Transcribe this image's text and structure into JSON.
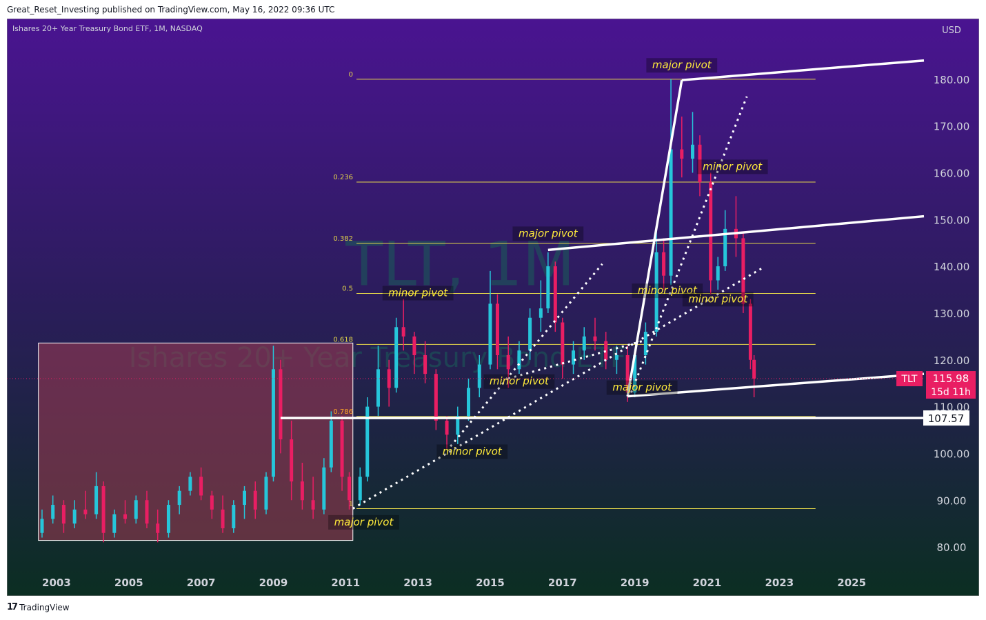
{
  "header": {
    "text": "Great_Reset_Investing published on TradingView.com, May 16, 2022 09:36 UTC"
  },
  "footer": {
    "logo": "17",
    "brand": "TradingView"
  },
  "chart_data": {
    "type": "candlestick",
    "title": "Ishares 20+ Year Treasury Bond ETF, 1M, NASDAQ",
    "watermark": {
      "line1": "TLT, 1M",
      "line2": "Ishares 20+ Year Treasury Bond ETF"
    },
    "currency": "USD",
    "colors": {
      "up": "#26c6da",
      "down": "#e91e63",
      "bgTop": "#4a1491",
      "bgBottom": "#0b2e22",
      "fib": "#e6d84a",
      "label": "#ffeb3b"
    },
    "x_ticks": [
      "2003",
      "2005",
      "2007",
      "2009",
      "2011",
      "2013",
      "2015",
      "2017",
      "2019",
      "2021",
      "2023",
      "2025"
    ],
    "y_ticks": [
      80,
      90,
      100,
      110,
      120,
      130,
      140,
      150,
      160,
      170,
      180
    ],
    "ylim": [
      75,
      190
    ],
    "xlim": [
      2002.2,
      2027.0
    ],
    "last_price": {
      "symbol": "TLT",
      "value": "115.98",
      "countdown": "15d 11h",
      "raw": 115.98
    },
    "support": {
      "value": "107.57",
      "raw": 107.57
    },
    "fib_levels": [
      {
        "label": "0",
        "value": 180.0
      },
      {
        "label": "0.236",
        "value": 158.0
      },
      {
        "label": "0.382",
        "value": 144.9
      },
      {
        "label": "0.5",
        "value": 134.2
      },
      {
        "label": "0.618",
        "value": 123.3
      },
      {
        "label": "0.786",
        "value": 107.9
      },
      {
        "label": "1",
        "value": 88.2
      }
    ],
    "pivots": [
      {
        "text": "major pivot",
        "x": 2020.3,
        "y": 182.3
      },
      {
        "text": "minor pivot",
        "x": 2021.7,
        "y": 160.6
      },
      {
        "text": "major pivot",
        "x": 2016.6,
        "y": 146.3
      },
      {
        "text": "minor pivot",
        "x": 2013.0,
        "y": 133.6
      },
      {
        "text": "minor pivot",
        "x": 2019.9,
        "y": 134.1
      },
      {
        "text": "minor pivot",
        "x": 2021.3,
        "y": 132.3
      },
      {
        "text": "minor pivot",
        "x": 2015.8,
        "y": 114.7
      },
      {
        "text": "major pivot",
        "x": 2019.2,
        "y": 113.4
      },
      {
        "text": "minor pivot",
        "x": 2014.5,
        "y": 99.7
      },
      {
        "text": "major pivot",
        "x": 2011.5,
        "y": 84.6
      }
    ],
    "box": {
      "x0": 2002.5,
      "x1": 2011.2,
      "y0": 81.4,
      "y1": 123.6
    },
    "series": [
      {
        "t": 2002.6,
        "o": 83,
        "h": 88,
        "l": 82,
        "c": 86
      },
      {
        "t": 2002.9,
        "o": 86,
        "h": 91,
        "l": 85,
        "c": 89
      },
      {
        "t": 2003.2,
        "o": 89,
        "h": 90,
        "l": 83,
        "c": 85
      },
      {
        "t": 2003.5,
        "o": 85,
        "h": 90,
        "l": 84,
        "c": 88
      },
      {
        "t": 2003.8,
        "o": 88,
        "h": 92,
        "l": 86,
        "c": 87
      },
      {
        "t": 2004.1,
        "o": 87,
        "h": 96,
        "l": 86,
        "c": 93
      },
      {
        "t": 2004.3,
        "o": 93,
        "h": 94,
        "l": 81,
        "c": 83
      },
      {
        "t": 2004.6,
        "o": 83,
        "h": 88,
        "l": 82,
        "c": 87
      },
      {
        "t": 2004.9,
        "o": 87,
        "h": 90,
        "l": 85,
        "c": 86
      },
      {
        "t": 2005.2,
        "o": 86,
        "h": 91,
        "l": 85,
        "c": 90
      },
      {
        "t": 2005.5,
        "o": 90,
        "h": 92,
        "l": 84,
        "c": 85
      },
      {
        "t": 2005.8,
        "o": 85,
        "h": 88,
        "l": 81,
        "c": 83
      },
      {
        "t": 2006.1,
        "o": 83,
        "h": 90,
        "l": 82,
        "c": 89
      },
      {
        "t": 2006.4,
        "o": 89,
        "h": 93,
        "l": 87,
        "c": 92
      },
      {
        "t": 2006.7,
        "o": 92,
        "h": 96,
        "l": 91,
        "c": 95
      },
      {
        "t": 2007.0,
        "o": 95,
        "h": 97,
        "l": 90,
        "c": 91
      },
      {
        "t": 2007.3,
        "o": 91,
        "h": 92,
        "l": 86,
        "c": 88
      },
      {
        "t": 2007.6,
        "o": 88,
        "h": 91,
        "l": 83,
        "c": 84
      },
      {
        "t": 2007.9,
        "o": 84,
        "h": 90,
        "l": 83,
        "c": 89
      },
      {
        "t": 2008.2,
        "o": 89,
        "h": 93,
        "l": 86,
        "c": 92
      },
      {
        "t": 2008.5,
        "o": 92,
        "h": 94,
        "l": 86,
        "c": 88
      },
      {
        "t": 2008.8,
        "o": 88,
        "h": 96,
        "l": 87,
        "c": 95
      },
      {
        "t": 2009.0,
        "o": 95,
        "h": 123,
        "l": 94,
        "c": 118
      },
      {
        "t": 2009.2,
        "o": 118,
        "h": 120,
        "l": 100,
        "c": 103
      },
      {
        "t": 2009.5,
        "o": 103,
        "h": 107,
        "l": 90,
        "c": 94
      },
      {
        "t": 2009.8,
        "o": 94,
        "h": 98,
        "l": 88,
        "c": 90
      },
      {
        "t": 2010.1,
        "o": 90,
        "h": 95,
        "l": 86,
        "c": 88
      },
      {
        "t": 2010.4,
        "o": 88,
        "h": 99,
        "l": 87,
        "c": 97
      },
      {
        "t": 2010.6,
        "o": 97,
        "h": 109,
        "l": 96,
        "c": 107
      },
      {
        "t": 2010.9,
        "o": 107,
        "h": 108,
        "l": 92,
        "c": 95
      },
      {
        "t": 2011.1,
        "o": 95,
        "h": 96,
        "l": 88,
        "c": 90
      },
      {
        "t": 2011.4,
        "o": 90,
        "h": 97,
        "l": 89,
        "c": 95
      },
      {
        "t": 2011.6,
        "o": 95,
        "h": 112,
        "l": 94,
        "c": 110
      },
      {
        "t": 2011.9,
        "o": 110,
        "h": 123,
        "l": 108,
        "c": 118
      },
      {
        "t": 2012.2,
        "o": 118,
        "h": 120,
        "l": 110,
        "c": 114
      },
      {
        "t": 2012.4,
        "o": 114,
        "h": 129,
        "l": 113,
        "c": 127
      },
      {
        "t": 2012.6,
        "o": 127,
        "h": 133,
        "l": 122,
        "c": 125
      },
      {
        "t": 2012.9,
        "o": 125,
        "h": 126,
        "l": 117,
        "c": 121
      },
      {
        "t": 2013.2,
        "o": 121,
        "h": 124,
        "l": 115,
        "c": 117
      },
      {
        "t": 2013.5,
        "o": 117,
        "h": 118,
        "l": 105,
        "c": 107
      },
      {
        "t": 2013.8,
        "o": 107,
        "h": 108,
        "l": 101,
        "c": 104
      },
      {
        "t": 2014.1,
        "o": 104,
        "h": 110,
        "l": 102,
        "c": 108
      },
      {
        "t": 2014.4,
        "o": 108,
        "h": 116,
        "l": 107,
        "c": 114
      },
      {
        "t": 2014.7,
        "o": 114,
        "h": 121,
        "l": 112,
        "c": 119
      },
      {
        "t": 2015.0,
        "o": 119,
        "h": 139,
        "l": 118,
        "c": 132
      },
      {
        "t": 2015.2,
        "o": 132,
        "h": 134,
        "l": 118,
        "c": 121
      },
      {
        "t": 2015.5,
        "o": 121,
        "h": 125,
        "l": 114,
        "c": 118
      },
      {
        "t": 2015.8,
        "o": 118,
        "h": 124,
        "l": 117,
        "c": 122
      },
      {
        "t": 2016.1,
        "o": 122,
        "h": 131,
        "l": 120,
        "c": 129
      },
      {
        "t": 2016.4,
        "o": 129,
        "h": 137,
        "l": 126,
        "c": 131
      },
      {
        "t": 2016.6,
        "o": 131,
        "h": 143,
        "l": 130,
        "c": 140
      },
      {
        "t": 2016.8,
        "o": 140,
        "h": 141,
        "l": 126,
        "c": 128
      },
      {
        "t": 2017.0,
        "o": 128,
        "h": 129,
        "l": 116,
        "c": 119
      },
      {
        "t": 2017.3,
        "o": 119,
        "h": 124,
        "l": 117,
        "c": 122
      },
      {
        "t": 2017.6,
        "o": 122,
        "h": 127,
        "l": 120,
        "c": 125
      },
      {
        "t": 2017.9,
        "o": 125,
        "h": 129,
        "l": 122,
        "c": 124
      },
      {
        "t": 2018.2,
        "o": 124,
        "h": 126,
        "l": 118,
        "c": 120
      },
      {
        "t": 2018.5,
        "o": 120,
        "h": 123,
        "l": 117,
        "c": 121
      },
      {
        "t": 2018.8,
        "o": 121,
        "h": 123,
        "l": 111,
        "c": 113
      },
      {
        "t": 2019.0,
        "o": 113,
        "h": 122,
        "l": 112,
        "c": 121
      },
      {
        "t": 2019.3,
        "o": 121,
        "h": 128,
        "l": 119,
        "c": 126
      },
      {
        "t": 2019.6,
        "o": 126,
        "h": 148,
        "l": 125,
        "c": 143
      },
      {
        "t": 2019.8,
        "o": 143,
        "h": 146,
        "l": 135,
        "c": 138
      },
      {
        "t": 2020.0,
        "o": 138,
        "h": 180,
        "l": 136,
        "c": 165
      },
      {
        "t": 2020.3,
        "o": 165,
        "h": 172,
        "l": 159,
        "c": 163
      },
      {
        "t": 2020.6,
        "o": 163,
        "h": 173,
        "l": 160,
        "c": 166
      },
      {
        "t": 2020.8,
        "o": 166,
        "h": 168,
        "l": 155,
        "c": 158
      },
      {
        "t": 2021.1,
        "o": 158,
        "h": 160,
        "l": 134,
        "c": 137
      },
      {
        "t": 2021.3,
        "o": 137,
        "h": 142,
        "l": 135,
        "c": 140
      },
      {
        "t": 2021.5,
        "o": 140,
        "h": 152,
        "l": 139,
        "c": 148
      },
      {
        "t": 2021.8,
        "o": 148,
        "h": 155,
        "l": 142,
        "c": 146
      },
      {
        "t": 2022.0,
        "o": 146,
        "h": 147,
        "l": 130,
        "c": 132
      },
      {
        "t": 2022.2,
        "o": 132,
        "h": 133,
        "l": 118,
        "c": 120
      },
      {
        "t": 2022.3,
        "o": 120,
        "h": 121,
        "l": 112,
        "c": 116
      }
    ]
  }
}
